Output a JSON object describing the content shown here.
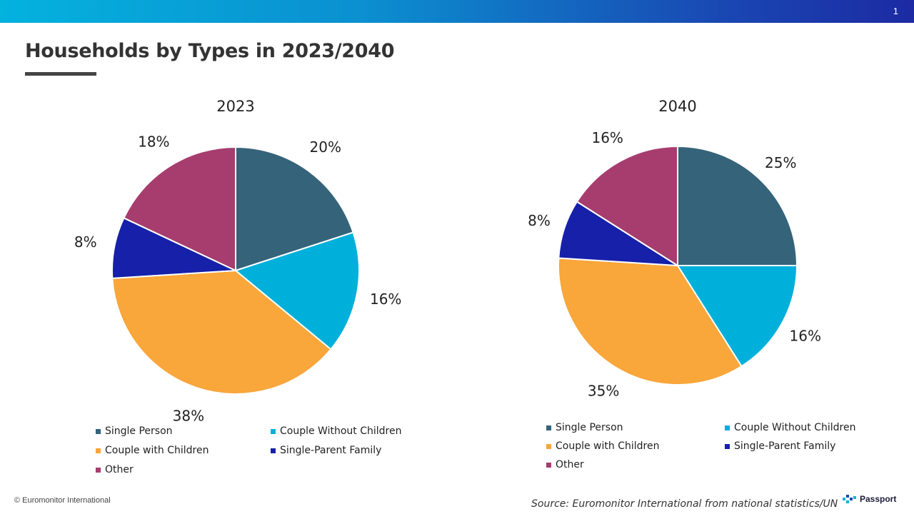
{
  "header": {
    "page_number": "1",
    "title": "Households by Types in 2023/2040"
  },
  "chart_data": [
    {
      "type": "pie",
      "title": "2023",
      "categories": [
        "Single Person",
        "Couple Without Children",
        "Couple with Children",
        "Single-Parent Family",
        "Other"
      ],
      "values": [
        20,
        16,
        38,
        8,
        18
      ],
      "labels": [
        "20%",
        "16%",
        "38%",
        "8%",
        "18%"
      ],
      "colors": [
        "#35637a",
        "#00b0da",
        "#f9a63a",
        "#1720a8",
        "#a63d6e"
      ],
      "legend_position": "bottom"
    },
    {
      "type": "pie",
      "title": "2040",
      "categories": [
        "Single Person",
        "Couple Without Children",
        "Couple with Children",
        "Single-Parent Family",
        "Other"
      ],
      "values": [
        25,
        16,
        35,
        8,
        16
      ],
      "labels": [
        "25%",
        "16%",
        "35%",
        "8%",
        "16%"
      ],
      "colors": [
        "#35637a",
        "#00b0da",
        "#f9a63a",
        "#1720a8",
        "#a63d6e"
      ],
      "legend_position": "bottom"
    }
  ],
  "footer": {
    "copyright": "© Euromonitor International",
    "source": "Source: Euromonitor International from national statistics/UN",
    "brand": "Passport"
  }
}
